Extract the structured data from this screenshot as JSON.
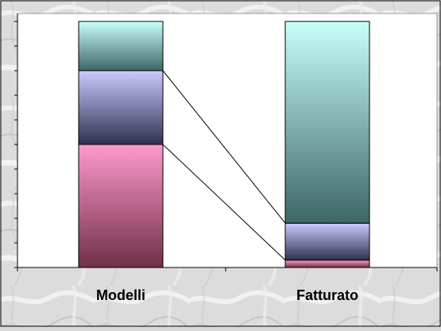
{
  "chart_data": {
    "type": "bar",
    "stacked": true,
    "normalized_percent": true,
    "categories": [
      "Modelli",
      "Fatturato"
    ],
    "series": [
      {
        "values": [
          50,
          3
        ],
        "color": "#ff8fc8"
      },
      {
        "values": [
          30,
          15
        ],
        "color": "#c6c4ff"
      },
      {
        "values": [
          20,
          82
        ],
        "color": "#bff7f3"
      }
    ],
    "ylim": [
      0,
      100
    ],
    "grid": false,
    "legend": "none",
    "connector_lines": true
  }
}
